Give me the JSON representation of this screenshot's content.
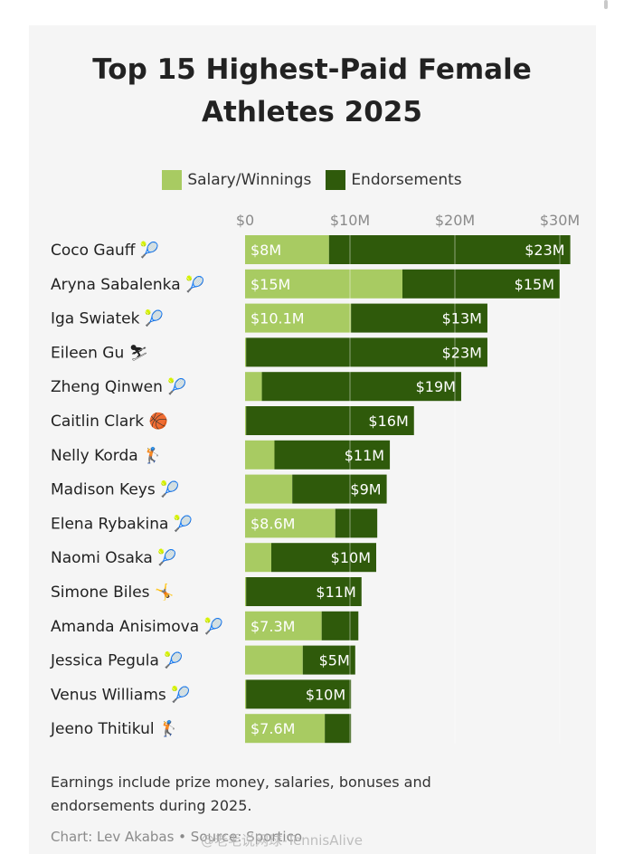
{
  "title_line1": "Top 15 Highest-Paid Female",
  "title_line2": "Athletes 2025",
  "legend": {
    "salary": "Salary/Winnings",
    "endorsements": "Endorsements"
  },
  "colors": {
    "salary": "#a8cb62",
    "endorsements": "#2f5a0b",
    "grid": "#d9d9d9",
    "card": "#f5f5f5"
  },
  "chart_data": {
    "type": "bar",
    "orientation": "horizontal",
    "stacked": true,
    "title": "Top 15 Highest-Paid Female Athletes 2025",
    "xlim": [
      0,
      33
    ],
    "ticks": [
      0,
      10,
      20,
      30
    ],
    "tick_labels": [
      "$0",
      "$10M",
      "$20M",
      "$30M"
    ],
    "categories": [
      {
        "name": "Coco Gauff",
        "icon": "🎾",
        "icon_name": "tennis-ball-icon"
      },
      {
        "name": "Aryna Sabalenka",
        "icon": "🎾",
        "icon_name": "tennis-ball-icon"
      },
      {
        "name": "Iga Swiatek",
        "icon": "🎾",
        "icon_name": "tennis-ball-icon"
      },
      {
        "name": "Eileen Gu",
        "icon": "⛷",
        "icon_name": "skier-icon"
      },
      {
        "name": "Zheng Qinwen",
        "icon": "🎾",
        "icon_name": "tennis-ball-icon"
      },
      {
        "name": "Caitlin Clark",
        "icon": "🏀",
        "icon_name": "basketball-icon"
      },
      {
        "name": "Nelly Korda",
        "icon": "🏌",
        "icon_name": "golfer-icon"
      },
      {
        "name": "Madison Keys",
        "icon": "🎾",
        "icon_name": "tennis-ball-icon"
      },
      {
        "name": "Elena Rybakina",
        "icon": "🎾",
        "icon_name": "tennis-ball-icon"
      },
      {
        "name": "Naomi Osaka",
        "icon": "🎾",
        "icon_name": "tennis-ball-icon"
      },
      {
        "name": "Simone Biles",
        "icon": "🤸",
        "icon_name": "gymnast-icon"
      },
      {
        "name": "Amanda Anisimova",
        "icon": "🎾",
        "icon_name": "tennis-ball-icon"
      },
      {
        "name": "Jessica Pegula",
        "icon": "🎾",
        "icon_name": "tennis-ball-icon"
      },
      {
        "name": "Venus Williams",
        "icon": "🎾",
        "icon_name": "tennis-ball-icon"
      },
      {
        "name": "Jeeno Thitikul",
        "icon": "🏌",
        "icon_name": "golfer-icon"
      }
    ],
    "series": [
      {
        "name": "Salary/Winnings",
        "values": [
          8,
          15,
          10.1,
          0.1,
          1.6,
          0.1,
          2.8,
          4.5,
          8.6,
          2.5,
          0.1,
          7.3,
          5.5,
          0.1,
          7.6
        ],
        "labels": [
          "$8M",
          "$15M",
          "$10.1M",
          "",
          "",
          "",
          "",
          "",
          "$8.6M",
          "",
          "",
          "$7.3M",
          "",
          "",
          "$7.6M"
        ]
      },
      {
        "name": "Endorsements",
        "values": [
          23,
          15,
          13,
          23,
          19,
          16,
          11,
          9,
          4,
          10,
          11,
          3.5,
          5,
          10,
          2.5
        ],
        "labels": [
          "$23M",
          "$15M",
          "$13M",
          "$23M",
          "$19M",
          "$16M",
          "$11M",
          "$9M",
          "",
          "$10M",
          "$11M",
          "",
          "$5M",
          "$10M",
          ""
        ]
      }
    ]
  },
  "footnote": "Earnings include prize money, salaries, bonuses and endorsements during 2025.",
  "credit": "Chart: Lev Akabas • Source: Sportico",
  "watermark": "@老毛说网球-TennisAlive"
}
